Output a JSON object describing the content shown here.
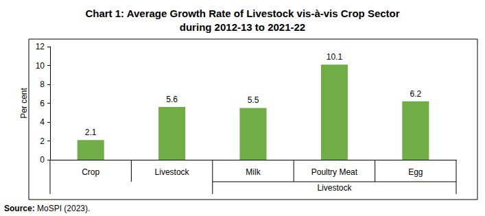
{
  "chart_data": {
    "type": "bar",
    "title": "Chart 1: Average Growth Rate of Livestock vis-à-vis Crop Sector\nduring 2012-13 to 2021-22",
    "y_label": "Per cent",
    "categories": [
      "Crop",
      "Livestock",
      "Milk",
      "Poultry Meat",
      "Egg"
    ],
    "values": [
      2.1,
      5.6,
      5.5,
      10.1,
      6.2
    ],
    "color": "#70ad47",
    "ylim": [
      0,
      12
    ],
    "yticks": [
      0,
      2,
      4,
      6,
      8,
      10,
      12
    ],
    "grid": false,
    "data_labels": true,
    "group_labels": [
      {
        "label": "Livestock",
        "from": "Milk",
        "to": "Egg"
      }
    ],
    "source": {
      "label": "Source:",
      "text": "MoSPI (2023)."
    }
  }
}
